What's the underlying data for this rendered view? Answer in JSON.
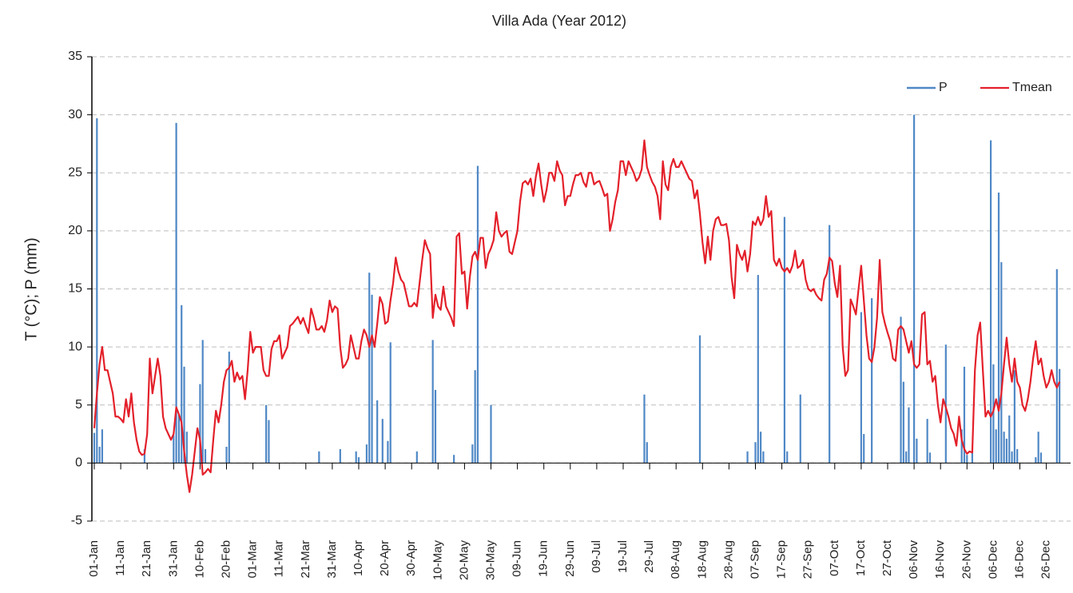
{
  "chart_data": {
    "type": "combo",
    "title": "Villa Ada (Year 2012)",
    "y_label": "T (°C); P (mm)",
    "ylim": [
      -5,
      35
    ],
    "yticks": [
      -5,
      0,
      5,
      10,
      15,
      20,
      25,
      30,
      35
    ],
    "grid": true,
    "legend": "top-right",
    "categories": [
      "01-Jan",
      null,
      null,
      null,
      null,
      null,
      null,
      null,
      null,
      null,
      "11-Jan",
      null,
      null,
      null,
      null,
      null,
      null,
      null,
      null,
      null,
      "21-Jan",
      null,
      null,
      null,
      null,
      null,
      null,
      null,
      null,
      null,
      "31-Jan",
      null,
      null,
      null,
      null,
      null,
      null,
      null,
      null,
      null,
      "10-Feb",
      null,
      null,
      null,
      null,
      null,
      null,
      null,
      null,
      null,
      "20-Feb",
      null,
      null,
      null,
      null,
      null,
      null,
      null,
      null,
      null,
      "01-Mar",
      null,
      null,
      null,
      null,
      null,
      null,
      null,
      null,
      null,
      "11-Mar",
      null,
      null,
      null,
      null,
      null,
      null,
      null,
      null,
      null,
      "21-Mar",
      null,
      null,
      null,
      null,
      null,
      null,
      null,
      null,
      null,
      "31-Mar",
      null,
      null,
      null,
      null,
      null,
      null,
      null,
      null,
      null,
      "10-Apr",
      null,
      null,
      null,
      null,
      null,
      null,
      null,
      null,
      null,
      "20-Apr",
      null,
      null,
      null,
      null,
      null,
      null,
      null,
      null,
      null,
      "30-Apr",
      null,
      null,
      null,
      null,
      null,
      null,
      null,
      null,
      null,
      "10-May",
      null,
      null,
      null,
      null,
      null,
      null,
      null,
      null,
      null,
      "20-May",
      null,
      null,
      null,
      null,
      null,
      null,
      null,
      null,
      null,
      "30-May",
      null,
      null,
      null,
      null,
      null,
      null,
      null,
      null,
      null,
      "09-Jun",
      null,
      null,
      null,
      null,
      null,
      null,
      null,
      null,
      null,
      "19-Jun",
      null,
      null,
      null,
      null,
      null,
      null,
      null,
      null,
      null,
      "29-Jun",
      null,
      null,
      null,
      null,
      null,
      null,
      null,
      null,
      null,
      "09-Jul",
      null,
      null,
      null,
      null,
      null,
      null,
      null,
      null,
      null,
      "19-Jul",
      null,
      null,
      null,
      null,
      null,
      null,
      null,
      null,
      null,
      "29-Jul",
      null,
      null,
      null,
      null,
      null,
      null,
      null,
      null,
      null,
      "08-Aug",
      null,
      null,
      null,
      null,
      null,
      null,
      null,
      null,
      null,
      "18-Aug",
      null,
      null,
      null,
      null,
      null,
      null,
      null,
      null,
      null,
      "28-Aug",
      null,
      null,
      null,
      null,
      null,
      null,
      null,
      null,
      null,
      "07-Sep",
      null,
      null,
      null,
      null,
      null,
      null,
      null,
      null,
      null,
      "17-Sep",
      null,
      null,
      null,
      null,
      null,
      null,
      null,
      null,
      null,
      "27-Sep",
      null,
      null,
      null,
      null,
      null,
      null,
      null,
      null,
      null,
      "07-Oct",
      null,
      null,
      null,
      null,
      null,
      null,
      null,
      null,
      null,
      "17-Oct",
      null,
      null,
      null,
      null,
      null,
      null,
      null,
      null,
      null,
      "27-Oct",
      null,
      null,
      null,
      null,
      null,
      null,
      null,
      null,
      null,
      "06-Nov",
      null,
      null,
      null,
      null,
      null,
      null,
      null,
      null,
      null,
      "16-Nov",
      null,
      null,
      null,
      null,
      null,
      null,
      null,
      null,
      null,
      "26-Nov",
      null,
      null,
      null,
      null,
      null,
      null,
      null,
      null,
      null,
      "06-Dec",
      null,
      null,
      null,
      null,
      null,
      null,
      null,
      null,
      null,
      "16-Dec",
      null,
      null,
      null,
      null,
      null,
      null,
      null,
      null,
      null,
      "26-Dec",
      null,
      null,
      null,
      null,
      null
    ],
    "series": [
      {
        "name": "P",
        "type": "bar",
        "color": "#4f88c6",
        "values": [
          2.6,
          29.7,
          1.4,
          2.9,
          0,
          0,
          0,
          0,
          0,
          0,
          0,
          0,
          0,
          0,
          0,
          0,
          0,
          0,
          0,
          1.2,
          0,
          0,
          0,
          0,
          0,
          0,
          0,
          0,
          0,
          0,
          2.4,
          29.3,
          4.2,
          13.6,
          8.3,
          2.7,
          0,
          0,
          0,
          0,
          6.8,
          10.6,
          1.2,
          0,
          0,
          0,
          0,
          0,
          0,
          0,
          1.4,
          9.6,
          0,
          0,
          0,
          0,
          0,
          0,
          0,
          0,
          0,
          0,
          0,
          0,
          0,
          5,
          3.7,
          0,
          0,
          0,
          0,
          0,
          0,
          0,
          0,
          0,
          0,
          0,
          0,
          0,
          0,
          0,
          0,
          0,
          0,
          1,
          0,
          0,
          0,
          0,
          0,
          0,
          0,
          1.2,
          0,
          0,
          0,
          0,
          0,
          1,
          0.5,
          0,
          0,
          1.6,
          16.4,
          14.5,
          0,
          5.4,
          0,
          3.8,
          0,
          1.9,
          10.4,
          0,
          0,
          0,
          0,
          0,
          0,
          0,
          0,
          0,
          1,
          0,
          0,
          0,
          0,
          0,
          10.6,
          6.3,
          0,
          0,
          0,
          0,
          0,
          0,
          0.7,
          0,
          0,
          0,
          0,
          0,
          0,
          1.6,
          8,
          25.6,
          0,
          0,
          0,
          0,
          5,
          0,
          0,
          0,
          0,
          0,
          0,
          0,
          0,
          0,
          0,
          0,
          0,
          0,
          0,
          0,
          0,
          0,
          0,
          0,
          0,
          0,
          0,
          0,
          0,
          0,
          0,
          0,
          0,
          0,
          0,
          0,
          0,
          0,
          0,
          0,
          0,
          0,
          0,
          0,
          0,
          0,
          0,
          0,
          0,
          0,
          0,
          0,
          0,
          0,
          0,
          0,
          0,
          0,
          0,
          0,
          0,
          0,
          5.9,
          1.8,
          0,
          0,
          0,
          0,
          0,
          0,
          0,
          0,
          0,
          0,
          0,
          0,
          0,
          0,
          0,
          0,
          0,
          0,
          0,
          11,
          0,
          0,
          0,
          0,
          0,
          0,
          0,
          0,
          0,
          0,
          0,
          0,
          0,
          0,
          0,
          0,
          0,
          1,
          0,
          0,
          1.8,
          16.2,
          2.7,
          1,
          0,
          0,
          0,
          0,
          0,
          0,
          0,
          21.2,
          1,
          0,
          0,
          0,
          0,
          5.9,
          0,
          0,
          0,
          0,
          0,
          0,
          0,
          0,
          0,
          0,
          20.5,
          0,
          0,
          0,
          0,
          0,
          0,
          0,
          0,
          0,
          0,
          0,
          13,
          2.5,
          0,
          0,
          14.2,
          0,
          0,
          0,
          0,
          0,
          0,
          0,
          0,
          0,
          0,
          12.6,
          7,
          1,
          4.8,
          0,
          30,
          2.1,
          0,
          0,
          0,
          3.8,
          0.9,
          0,
          0,
          0,
          0,
          0,
          10.2,
          0,
          0,
          0,
          0,
          0,
          2.9,
          8.3,
          0.7,
          0,
          1,
          0,
          0,
          0,
          0,
          0,
          0,
          27.8,
          8.5,
          2.9,
          23.3,
          17.3,
          2.7,
          2.1,
          4.1,
          1,
          8,
          1.2,
          0,
          0,
          0,
          0,
          0,
          0,
          0.5,
          2.7,
          0.9,
          0,
          0,
          0,
          0,
          0,
          16.7,
          8.1
        ]
      },
      {
        "name": "Tmean",
        "type": "line",
        "color": "#e3202a",
        "values": [
          3,
          6,
          8.5,
          10,
          8,
          8,
          7,
          6,
          4,
          4,
          3.8,
          3.5,
          5.5,
          4,
          6,
          3.5,
          2,
          1,
          0.7,
          0.8,
          2.5,
          9,
          6,
          7.5,
          9,
          7.5,
          4,
          3,
          2.5,
          2,
          2.5,
          4.8,
          4.2,
          3.5,
          1,
          -1,
          -2.5,
          -1,
          1,
          3,
          2,
          -1,
          -0.8,
          -0.5,
          -0.8,
          2,
          4.5,
          3.5,
          5,
          7,
          8,
          8.2,
          8.8,
          7,
          7.8,
          7.2,
          7.5,
          5.5,
          8,
          11.3,
          9.5,
          10,
          10,
          10,
          8,
          7.5,
          7.5,
          9.8,
          10.5,
          10.5,
          11,
          9,
          9.5,
          10,
          11.8,
          12,
          12.3,
          12.6,
          12,
          12.5,
          11.8,
          11.2,
          13.3,
          12.5,
          11.5,
          11.5,
          11.8,
          11.3,
          12.3,
          14,
          13,
          13.5,
          13.3,
          10,
          8.2,
          8.5,
          9,
          11,
          10,
          9,
          9,
          10.5,
          11.5,
          11,
          10,
          11,
          10,
          12,
          14.3,
          13.7,
          12,
          12.2,
          14,
          15.5,
          17.7,
          16.5,
          15.8,
          15.5,
          14.5,
          13.5,
          13.5,
          13.8,
          13.5,
          15.5,
          17.5,
          19.2,
          18.5,
          18,
          12.5,
          14.5,
          13.5,
          13.2,
          15.2,
          13.5,
          13,
          12.5,
          11.8,
          19.5,
          19.8,
          16.3,
          16.5,
          13.3,
          16,
          17.8,
          18.2,
          17.5,
          19.4,
          19.4,
          16.8,
          18,
          18.5,
          19.2,
          21.6,
          20,
          19.5,
          19.8,
          20,
          18.2,
          18,
          19,
          20,
          22.5,
          24.1,
          24.3,
          24,
          24.5,
          23,
          24.7,
          25.8,
          24,
          22.5,
          23.5,
          25,
          25,
          24.3,
          26,
          25.2,
          24.8,
          22.2,
          23,
          23,
          24,
          24.8,
          24.8,
          25,
          24.2,
          23.8,
          25,
          25,
          24,
          24.2,
          24.3,
          23.7,
          23,
          23.2,
          20,
          21,
          22.5,
          23.5,
          26,
          26,
          24.8,
          26,
          25.5,
          25,
          24.3,
          24.6,
          25.3,
          27.8,
          25.5,
          24.8,
          24.2,
          23.8,
          23,
          21,
          26,
          24,
          23.5,
          25.5,
          26.2,
          25.5,
          25.5,
          26,
          25.5,
          25,
          24.5,
          24.3,
          22.8,
          23.5,
          21.5,
          19,
          17.2,
          19.5,
          17.5,
          20,
          21,
          21.2,
          20.5,
          20.5,
          20.6,
          19.2,
          16,
          14.2,
          18.8,
          18,
          17.5,
          18.3,
          16.5,
          18,
          20.8,
          20.5,
          21.2,
          20.5,
          21,
          23,
          21.2,
          21.7,
          17.5,
          17,
          17.6,
          16.8,
          16.5,
          16.8,
          16.4,
          17,
          18.3,
          16.8,
          17,
          17.5,
          15.8,
          15,
          14.8,
          15,
          14.5,
          14.2,
          14,
          15.8,
          16.3,
          17.7,
          17.4,
          15.5,
          14.3,
          17,
          10,
          7.5,
          8,
          14.1,
          13.5,
          12.8,
          15,
          17,
          14,
          11,
          9,
          8.7,
          10,
          12.5,
          17.5,
          13,
          12,
          11.2,
          10.5,
          9,
          8.8,
          11.5,
          11.8,
          11.5,
          10.5,
          9.5,
          10.5,
          8.5,
          8.2,
          8.5,
          12.8,
          13,
          8.5,
          8.8,
          7,
          7.5,
          5,
          3.5,
          5.5,
          4.8,
          4,
          3,
          2.5,
          1.5,
          4,
          2,
          1.2,
          0.8,
          1,
          0.9,
          8,
          11,
          12.1,
          8,
          4,
          4.5,
          4,
          4.5,
          5.5,
          4.5,
          6,
          8.5,
          10.8,
          8.5,
          7,
          9,
          7,
          6.5,
          5,
          4.5,
          5.5,
          7,
          9,
          10.5,
          8.5,
          9,
          7.5,
          6.5,
          7,
          8,
          7,
          6.5,
          7
        ]
      }
    ]
  }
}
